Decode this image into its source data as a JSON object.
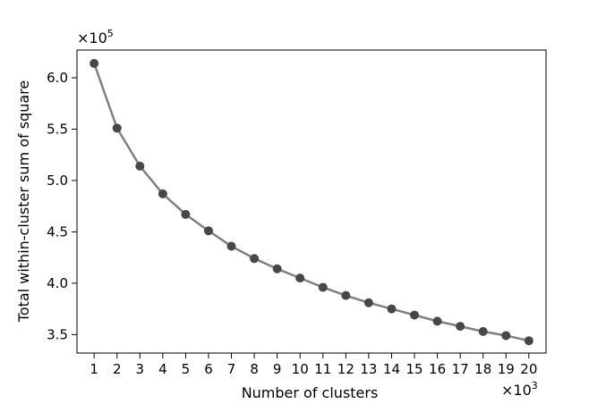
{
  "chart_data": {
    "type": "line",
    "xlabel": "Number of clusters",
    "ylabel": "Total within-cluster sum of square",
    "x_multiplier": "×10",
    "x_multiplier_exp": "3",
    "y_multiplier": "×10",
    "y_multiplier_exp": "5",
    "x_ticks": [
      1,
      2,
      3,
      4,
      5,
      6,
      7,
      8,
      9,
      10,
      11,
      12,
      13,
      14,
      15,
      16,
      17,
      18,
      19,
      20
    ],
    "y_ticks": [
      3.5,
      4.0,
      4.5,
      5.0,
      5.5,
      6.0
    ],
    "xlim": [
      0.25,
      20.75
    ],
    "ylim": [
      3.32,
      6.27
    ],
    "grid": false,
    "line_color": "#808080",
    "marker_color": "#474747",
    "series": [
      {
        "x": [
          1,
          2,
          3,
          4,
          5,
          6,
          7,
          8,
          9,
          10,
          11,
          12,
          13,
          14,
          15,
          16,
          17,
          18,
          19,
          20
        ],
        "y": [
          6.14,
          5.51,
          5.14,
          4.87,
          4.67,
          4.51,
          4.36,
          4.24,
          4.14,
          4.05,
          3.96,
          3.88,
          3.81,
          3.75,
          3.69,
          3.63,
          3.58,
          3.53,
          3.49,
          3.44
        ]
      }
    ]
  }
}
